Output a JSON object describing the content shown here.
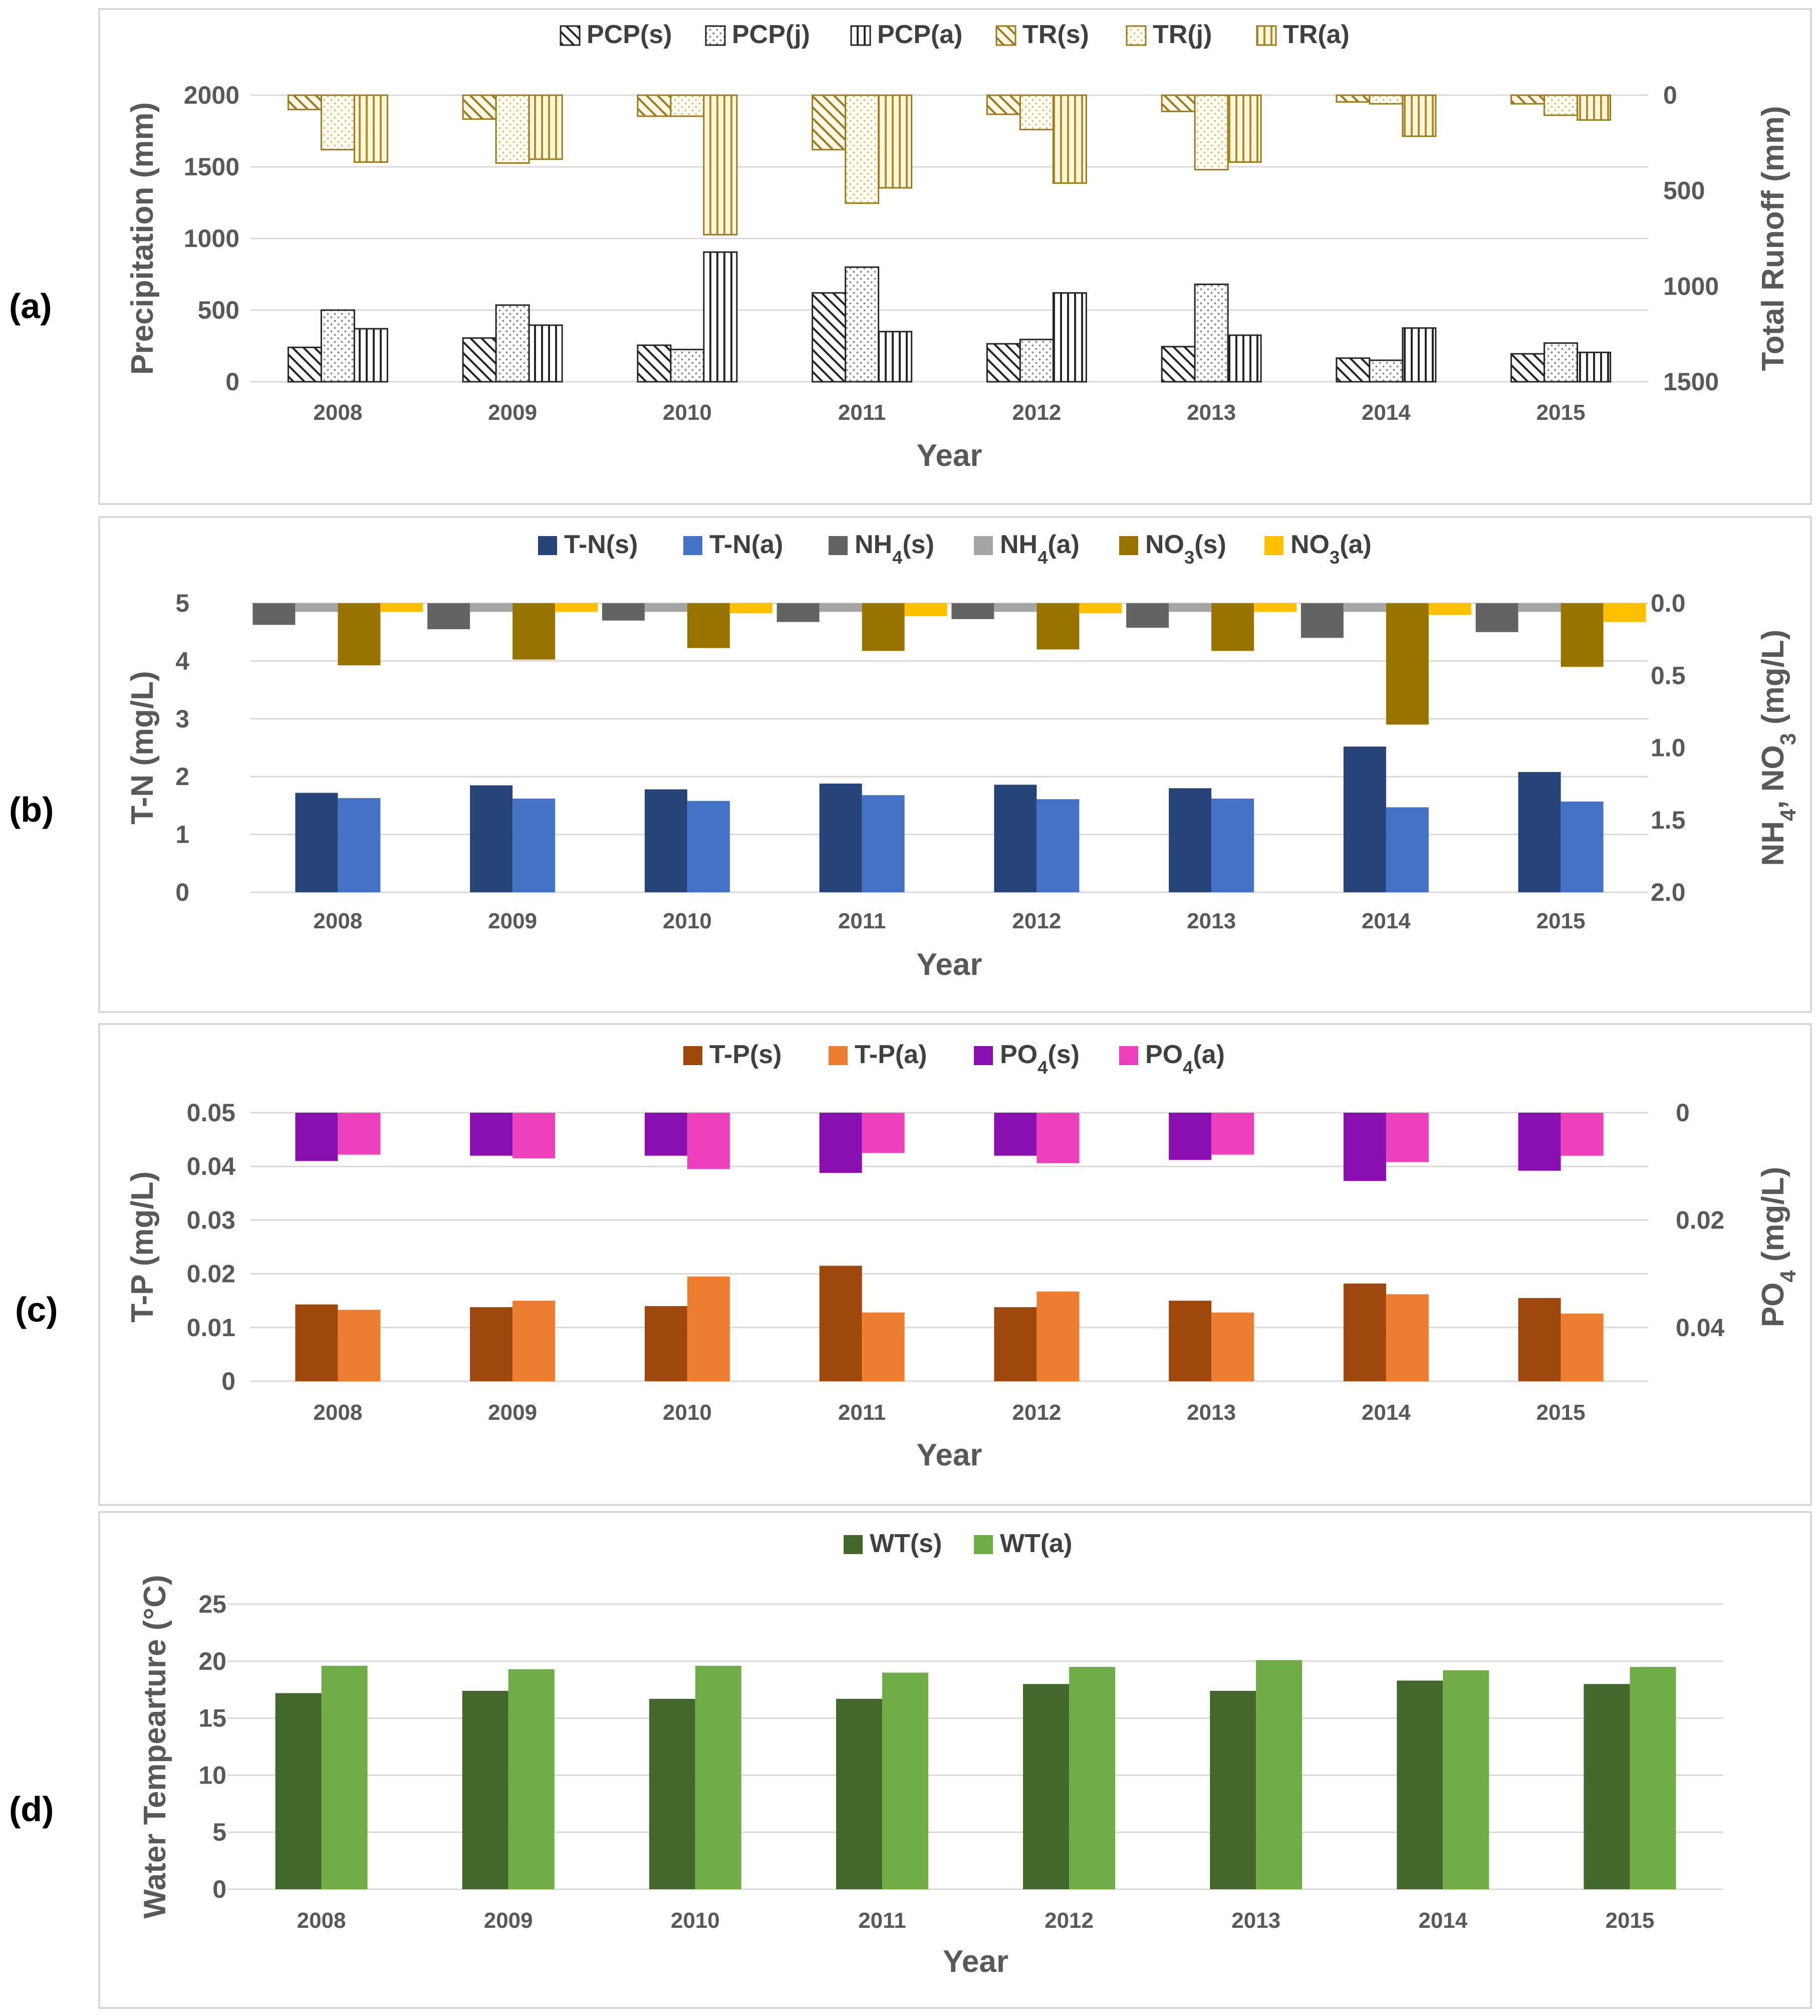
{
  "panel_labels": [
    "(a)",
    "(b)",
    "(c)",
    "(d)"
  ],
  "chart_data": [
    {
      "id": "a",
      "type": "bar",
      "xlabel": "Year",
      "ylabel": "Precipitation (mm)",
      "y2label": "Total Runoff (mm)",
      "categories": [
        "2008",
        "2009",
        "2010",
        "2011",
        "2012",
        "2013",
        "2014",
        "2015"
      ],
      "ylim": [
        0,
        2000
      ],
      "yticks": [
        0,
        500,
        1000,
        1500,
        2000
      ],
      "y2lim": [
        0,
        1500
      ],
      "y2ticks": [
        0,
        500,
        1000,
        1500
      ],
      "y2_inverted": true,
      "series": [
        {
          "name": "PCP(s)",
          "axis": "left",
          "color": "#262626",
          "pattern": "diag-left",
          "values": [
            240,
            305,
            255,
            620,
            265,
            245,
            165,
            195
          ]
        },
        {
          "name": "PCP(j)",
          "axis": "left",
          "color": "#262626",
          "pattern": "dots",
          "values": [
            500,
            535,
            225,
            800,
            295,
            680,
            150,
            270
          ]
        },
        {
          "name": "PCP(a)",
          "axis": "left",
          "color": "#262626",
          "pattern": "vertical",
          "values": [
            370,
            395,
            905,
            350,
            620,
            325,
            375,
            205
          ]
        },
        {
          "name": "TR(s)",
          "axis": "right",
          "color": "#9c7a1e",
          "pattern": "diag-left",
          "values": [
            75,
            125,
            110,
            285,
            100,
            85,
            35,
            45
          ]
        },
        {
          "name": "TR(j)",
          "axis": "right",
          "color": "#9c7a1e",
          "pattern": "dots",
          "values": [
            285,
            355,
            110,
            565,
            180,
            390,
            45,
            105
          ]
        },
        {
          "name": "TR(a)",
          "axis": "right",
          "color": "#9c7a1e",
          "pattern": "vertical",
          "values": [
            350,
            335,
            730,
            485,
            460,
            350,
            215,
            130
          ]
        }
      ]
    },
    {
      "id": "b",
      "type": "bar",
      "xlabel": "Year",
      "ylabel": "T-N (mg/L)",
      "y2label": "NH4, NO3 (mg/L)",
      "categories": [
        "2008",
        "2009",
        "2010",
        "2011",
        "2012",
        "2013",
        "2014",
        "2015"
      ],
      "ylim": [
        0,
        5
      ],
      "yticks": [
        0,
        1,
        2,
        3,
        4,
        5
      ],
      "y2lim": [
        0,
        2
      ],
      "y2ticks": [
        "0.0",
        "0.5",
        "1.0",
        "1.5",
        "2.0"
      ],
      "y2_inverted": true,
      "series": [
        {
          "name": "T-N(s)",
          "axis": "left",
          "color": "#264478",
          "values": [
            1.72,
            1.85,
            1.78,
            1.88,
            1.86,
            1.8,
            2.52,
            2.08
          ]
        },
        {
          "name": "T-N(a)",
          "axis": "left",
          "color": "#4472c4",
          "values": [
            1.63,
            1.62,
            1.58,
            1.68,
            1.61,
            1.62,
            1.47,
            1.57
          ]
        },
        {
          "name": "NH4(s)",
          "axis": "right",
          "color": "#636363",
          "values": [
            0.15,
            0.18,
            0.12,
            0.13,
            0.11,
            0.17,
            0.24,
            0.2
          ]
        },
        {
          "name": "NH4(a)",
          "axis": "right",
          "color": "#a5a5a5",
          "values": [
            0.06,
            0.06,
            0.06,
            0.06,
            0.06,
            0.06,
            0.06,
            0.06
          ]
        },
        {
          "name": "NO3(s)",
          "axis": "right",
          "color": "#997300",
          "values": [
            0.43,
            0.39,
            0.31,
            0.33,
            0.32,
            0.33,
            0.84,
            0.44
          ]
        },
        {
          "name": "NO3(a)",
          "axis": "right",
          "color": "#ffc000",
          "values": [
            0.06,
            0.06,
            0.07,
            0.09,
            0.07,
            0.06,
            0.08,
            0.13
          ]
        }
      ]
    },
    {
      "id": "c",
      "type": "bar",
      "xlabel": "Year",
      "ylabel": "T-P (mg/L)",
      "y2label": "PO4 (mg/L)",
      "categories": [
        "2008",
        "2009",
        "2010",
        "2011",
        "2012",
        "2013",
        "2014",
        "2015"
      ],
      "ylim": [
        0,
        0.05
      ],
      "yticks": [
        "0",
        "0.01",
        "0.02",
        "0.03",
        "0.04",
        "0.05"
      ],
      "y2lim": [
        0,
        0.05
      ],
      "y2ticks": [
        "0",
        "0.02",
        "0.04"
      ],
      "y2_inverted": true,
      "series": [
        {
          "name": "T-P(s)",
          "axis": "left",
          "color": "#9e480e",
          "values": [
            0.0143,
            0.0138,
            0.014,
            0.0215,
            0.0138,
            0.015,
            0.0182,
            0.0155
          ]
        },
        {
          "name": "T-P(a)",
          "axis": "left",
          "color": "#ed7d31",
          "values": [
            0.0133,
            0.015,
            0.0195,
            0.0128,
            0.0167,
            0.0128,
            0.0162,
            0.0126
          ]
        },
        {
          "name": "PO4(s)",
          "axis": "right",
          "color": "#8a0fb0",
          "values": [
            0.009,
            0.008,
            0.008,
            0.0112,
            0.008,
            0.0088,
            0.0127,
            0.0108
          ]
        },
        {
          "name": "PO4(a)",
          "axis": "right",
          "color": "#ec40bd",
          "values": [
            0.0078,
            0.0085,
            0.0105,
            0.0075,
            0.0094,
            0.0078,
            0.0092,
            0.008
          ]
        }
      ]
    },
    {
      "id": "d",
      "type": "bar",
      "xlabel": "Year",
      "ylabel": "Water Tempearture (°C)",
      "categories": [
        "2008",
        "2009",
        "2010",
        "2011",
        "2012",
        "2013",
        "2014",
        "2015"
      ],
      "ylim": [
        0,
        25
      ],
      "yticks": [
        0,
        5,
        10,
        15,
        20,
        25
      ],
      "series": [
        {
          "name": "WT(s)",
          "axis": "left",
          "color": "#43682b",
          "values": [
            17.2,
            17.4,
            16.7,
            16.7,
            18.0,
            17.4,
            18.3,
            18.0
          ]
        },
        {
          "name": "WT(a)",
          "axis": "left",
          "color": "#70ad47",
          "values": [
            19.6,
            19.3,
            19.6,
            19.0,
            19.5,
            20.1,
            19.2,
            19.5
          ]
        }
      ]
    }
  ]
}
